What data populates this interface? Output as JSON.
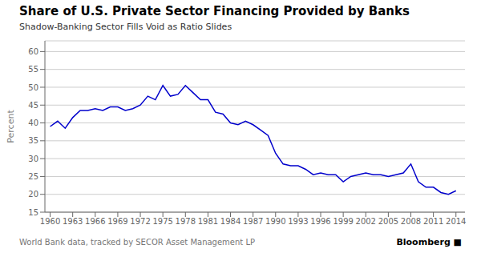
{
  "chart_data": {
    "type": "line",
    "title": "Share of U.S. Private Sector Financing Provided by Banks",
    "subtitle": "Shadow-Banking Sector Fills Void as Ratio Slides",
    "annotations": [
      "World Bank data, tracked by SECOR Asset Management LP",
      "Bloomberg ■"
    ],
    "y_label": "Percent",
    "color": "#0000CC",
    "grid": true,
    "x": [
      1960,
      1961,
      1962,
      1963,
      1964,
      1965,
      1966,
      1967,
      1968,
      1969,
      1970,
      1971,
      1972,
      1973,
      1974,
      1975,
      1976,
      1977,
      1978,
      1979,
      1980,
      1981,
      1982,
      1983,
      1984,
      1985,
      1986,
      1987,
      1988,
      1989,
      1990,
      1991,
      1992,
      1993,
      1994,
      1995,
      1996,
      1997,
      1998,
      1999,
      2000,
      2001,
      2002,
      2003,
      2004,
      2005,
      2006,
      2007,
      2008,
      2009,
      2010,
      2011,
      2012,
      2013,
      2014
    ],
    "values": [
      39.0,
      40.5,
      38.5,
      41.5,
      43.5,
      43.5,
      44.0,
      43.5,
      44.5,
      44.5,
      43.5,
      44.0,
      45.0,
      47.5,
      46.5,
      50.5,
      47.5,
      48.0,
      50.5,
      48.5,
      46.5,
      46.5,
      43.0,
      42.5,
      40.0,
      39.5,
      40.5,
      39.5,
      38.0,
      36.5,
      31.5,
      28.5,
      28.0,
      28.0,
      27.0,
      25.5,
      26.0,
      25.5,
      25.5,
      23.5,
      25.0,
      25.5,
      26.0,
      25.5,
      25.5,
      25.0,
      25.5,
      26.0,
      28.5,
      23.5,
      22.0,
      22.0,
      20.5,
      20.0,
      21.0
    ],
    "xlim": [
      1959.3,
      2015.2
    ],
    "xticks": [
      1960,
      1963,
      1966,
      1969,
      1972,
      1975,
      1978,
      1981,
      1984,
      1987,
      1990,
      1993,
      1996,
      1999,
      2002,
      2005,
      2008,
      2011,
      2014
    ],
    "ylim": [
      15,
      63
    ],
    "yticks": [
      15,
      20,
      25,
      30,
      35,
      40,
      45,
      50,
      55,
      60
    ]
  }
}
